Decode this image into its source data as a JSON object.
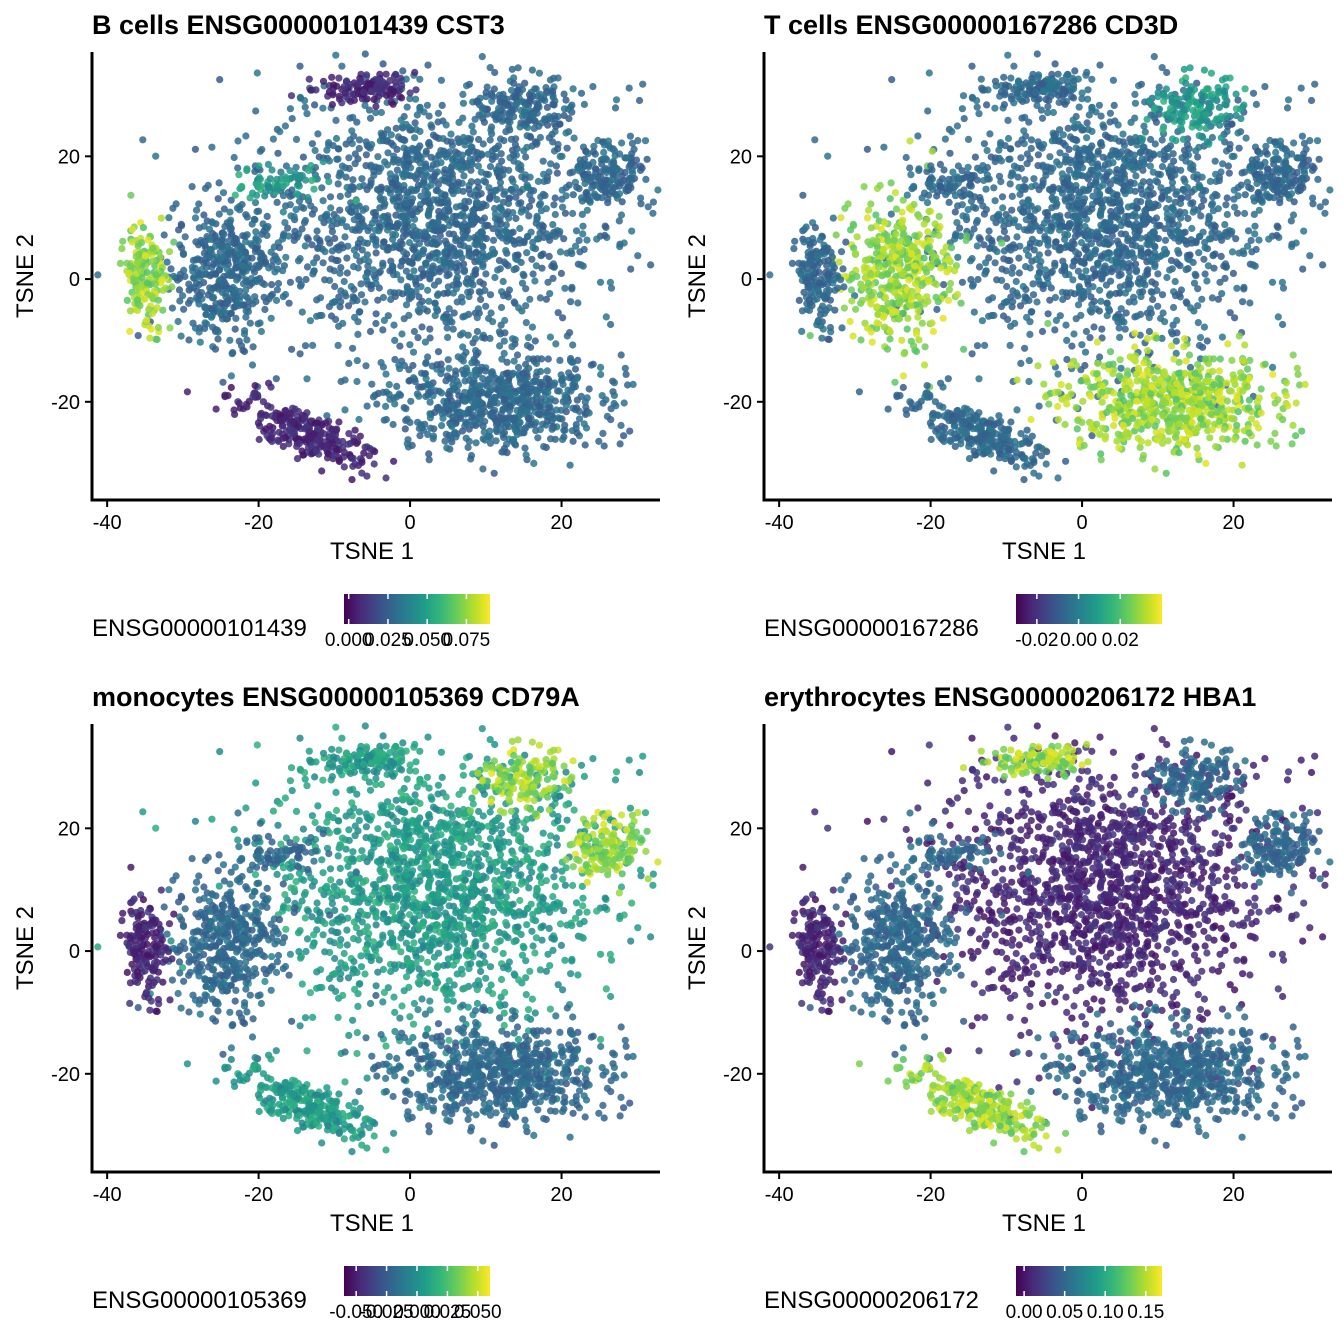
{
  "panels": [
    {
      "title": "B cells ENSG00000101439 CST3",
      "xlabel": "TSNE 1",
      "ylabel": "TSNE 2",
      "legend_title": "ENSG00000101439",
      "legend_ticks": [
        "0.000",
        "0.025",
        "0.050",
        "0.075"
      ],
      "legend_range": [
        -0.003,
        0.09
      ],
      "high_clusters": [
        "left-island"
      ],
      "mid_clusters": [
        "small-upper"
      ],
      "low_clusters": [
        "top-center",
        "bottom-diagonal"
      ]
    },
    {
      "title": "T cells ENSG00000167286 CD3D",
      "xlabel": "TSNE 1",
      "ylabel": "TSNE 2",
      "legend_title": "ENSG00000167286",
      "legend_ticks": [
        "-0.02",
        "0.00",
        "0.02"
      ],
      "legend_range": [
        -0.03,
        0.04
      ],
      "high_clusters": [
        "bottom-right",
        "left-big"
      ],
      "mid_clusters": [
        "top-right-a"
      ],
      "low_clusters": []
    },
    {
      "title": "monocytes ENSG00000105369 CD79A",
      "xlabel": "TSNE 1",
      "ylabel": "TSNE 2",
      "legend_title": "ENSG00000105369",
      "legend_ticks": [
        "-0.050",
        "-0.025",
        "0.000",
        "0.025",
        "0.050"
      ],
      "legend_range": [
        -0.06,
        0.06
      ],
      "high_clusters": [
        "top-right-a",
        "top-right-b"
      ],
      "mid_clusters": [
        "central",
        "bottom-diagonal",
        "top-center"
      ],
      "low_clusters": [
        "left-island"
      ]
    },
    {
      "title": "erythrocytes ENSG00000206172 HBA1",
      "xlabel": "TSNE 1",
      "ylabel": "TSNE 2",
      "legend_title": "ENSG00000206172",
      "legend_ticks": [
        "0.00",
        "0.05",
        "0.10",
        "0.15"
      ],
      "legend_range": [
        -0.01,
        0.17
      ],
      "high_clusters": [
        "bottom-diagonal",
        "top-center"
      ],
      "mid_clusters": [],
      "low_clusters": [
        "central",
        "left-island"
      ]
    }
  ],
  "chart_data": [
    {
      "type": "scatter",
      "title": "B cells ENSG00000101439 CST3",
      "xlabel": "TSNE 1",
      "ylabel": "TSNE 2",
      "xlim": [
        -42,
        33
      ],
      "ylim": [
        -36,
        37
      ],
      "xticks": [
        -40,
        -20,
        0,
        20
      ],
      "yticks": [
        -20,
        0,
        20
      ],
      "colorscale": "viridis",
      "color_variable": "ENSG00000101439",
      "color_range": [
        -0.003,
        0.09
      ],
      "color_ticks": [
        0.0,
        0.025,
        0.05,
        0.075
      ]
    },
    {
      "type": "scatter",
      "title": "T cells ENSG00000167286 CD3D",
      "xlabel": "TSNE 1",
      "ylabel": "TSNE 2",
      "xlim": [
        -42,
        33
      ],
      "ylim": [
        -36,
        37
      ],
      "xticks": [
        -40,
        -20,
        0,
        20
      ],
      "yticks": [
        -20,
        0,
        20
      ],
      "colorscale": "viridis",
      "color_variable": "ENSG00000167286",
      "color_range": [
        -0.03,
        0.04
      ],
      "color_ticks": [
        -0.02,
        0.0,
        0.02
      ]
    },
    {
      "type": "scatter",
      "title": "monocytes ENSG00000105369 CD79A",
      "xlabel": "TSNE 1",
      "ylabel": "TSNE 2",
      "xlim": [
        -42,
        33
      ],
      "ylim": [
        -36,
        37
      ],
      "xticks": [
        -40,
        -20,
        0,
        20
      ],
      "yticks": [
        -20,
        0,
        20
      ],
      "colorscale": "viridis",
      "color_variable": "ENSG00000105369",
      "color_range": [
        -0.06,
        0.06
      ],
      "color_ticks": [
        -0.05,
        -0.025,
        0.0,
        0.025,
        0.05
      ]
    },
    {
      "type": "scatter",
      "title": "erythrocytes ENSG00000206172 HBA1",
      "xlabel": "TSNE 1",
      "ylabel": "TSNE 2",
      "xlim": [
        -42,
        33
      ],
      "ylim": [
        -36,
        37
      ],
      "xticks": [
        -40,
        -20,
        0,
        20
      ],
      "yticks": [
        -20,
        0,
        20
      ],
      "colorscale": "viridis",
      "color_variable": "ENSG00000206172",
      "color_range": [
        -0.01,
        0.17
      ],
      "color_ticks": [
        0.0,
        0.05,
        0.1,
        0.15
      ]
    }
  ],
  "clusters": [
    {
      "name": "central",
      "cx": 3,
      "cy": 10,
      "sx": 11,
      "sy": 11,
      "n": 1600
    },
    {
      "name": "left-big",
      "cx": -24,
      "cy": 1,
      "sx": 3.5,
      "sy": 6,
      "n": 420
    },
    {
      "name": "bottom-right",
      "cx": 12,
      "cy": -20,
      "sx": 7,
      "sy": 4,
      "n": 650
    },
    {
      "name": "top-center",
      "cx": -6,
      "cy": 31,
      "sx": 3.5,
      "sy": 1.2,
      "n": 120
    },
    {
      "name": "top-right-a",
      "cx": 15,
      "cy": 28,
      "sx": 3,
      "sy": 2.5,
      "n": 150
    },
    {
      "name": "top-right-b",
      "cx": 26,
      "cy": 17,
      "sx": 2.3,
      "sy": 3,
      "n": 150
    },
    {
      "name": "left-island",
      "cx": -35,
      "cy": 0,
      "sx": 1.5,
      "sy": 4.5,
      "n": 160
    },
    {
      "name": "bottom-diagonal",
      "cx": -14,
      "cy": -25,
      "sx": 5,
      "sy": 1.6,
      "rot": -0.55,
      "n": 260
    },
    {
      "name": "small-upper",
      "cx": -17,
      "cy": 16,
      "sx": 3.5,
      "sy": 1.5,
      "n": 70
    }
  ]
}
